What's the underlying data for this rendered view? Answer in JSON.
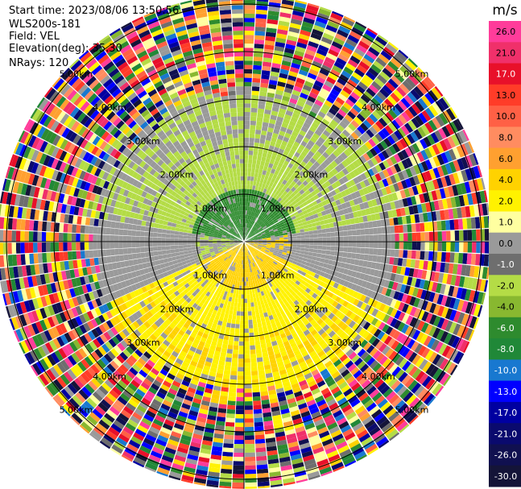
{
  "chart_data": {
    "type": "ppi",
    "info": {
      "start_time": "Start time: 2023/08/06 13:50:56",
      "instrument": "WLS200s-181",
      "field": "Field: VEL",
      "elevation": "Elevation(deg): 35.30",
      "nrays": "NRays: 120"
    },
    "range_rings_km": [
      1.0,
      2.0,
      3.0,
      4.0,
      5.0
    ],
    "ring_labels": [
      "1.00km",
      "2.00km",
      "3.00km",
      "4.00km",
      "5.00km"
    ],
    "max_range_km": 5.2,
    "nrays": 120,
    "colorbar": {
      "unit": "m/s",
      "ticks": [
        "26.0",
        "21.0",
        "17.0",
        "13.0",
        "10.0",
        "8.0",
        "6.0",
        "4.0",
        "2.0",
        "1.0",
        "0.0",
        "-1.0",
        "-2.0",
        "-4.0",
        "-6.0",
        "-8.0",
        "-10.0",
        "-13.0",
        "-17.0",
        "-21.0",
        "-26.0",
        "-30.0"
      ],
      "colors": [
        "#ff3c9a",
        "#f0306a",
        "#e8102a",
        "#ff3c28",
        "#ff6045",
        "#ff8c60",
        "#ffa030",
        "#ffd200",
        "#fff200",
        "#ffffa0",
        "#9a9a9a",
        "#6e6e6e",
        "#b4dc46",
        "#88b830",
        "#2e8b2e",
        "#208838",
        "#1878d0",
        "#0000ff",
        "#0000a0",
        "#0a0a6e",
        "#101050",
        "#141438"
      ]
    },
    "field_pattern": {
      "near_range_north_km": [
        0.0,
        1.1
      ],
      "near_range_south_km": [
        0.0,
        1.0
      ],
      "mid_range_km": [
        1.0,
        3.2
      ],
      "noise_start_km": 3.2,
      "north_velocity_ms": -5.0,
      "north_mid_velocity_ms": -2.0,
      "south_velocity_ms": 4.5,
      "south_mid_velocity_ms": 2.5,
      "transition_velocity_ms": 0.0
    }
  }
}
